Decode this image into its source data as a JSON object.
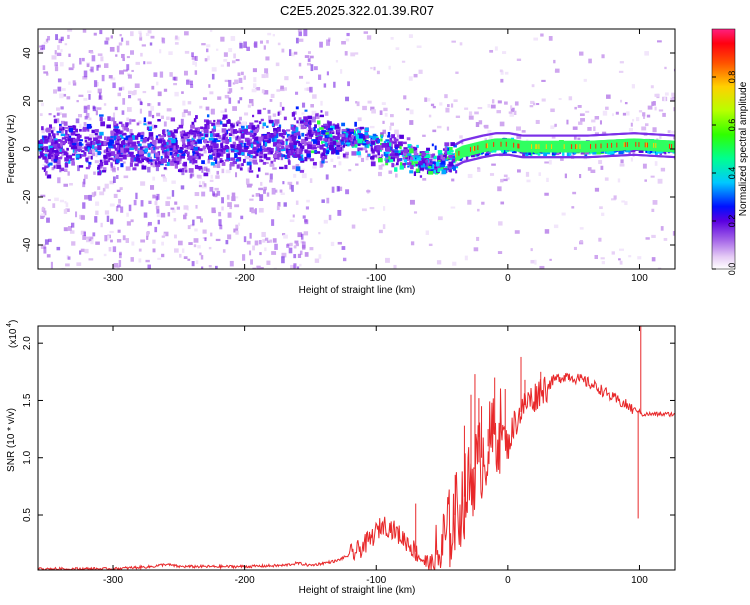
{
  "title": "C2E5.2025.322.01.39.R07",
  "chart_data": [
    {
      "type": "heatmap",
      "xlabel": "Height of straight line (km)",
      "ylabel": "Frequency (Hz)",
      "xlim": [
        -357,
        127
      ],
      "ylim": [
        -50,
        50
      ],
      "x_ticks": [
        -300,
        -200,
        -100,
        0,
        100
      ],
      "x_tick_labels": [
        "-300",
        "-200",
        "-100",
        "0",
        "100"
      ],
      "y_ticks": [
        -40,
        -20,
        0,
        20,
        40
      ],
      "y_tick_labels": [
        "-40",
        "-20",
        "0",
        "20",
        "40"
      ],
      "colorbar": {
        "label": "Normalized spectral amplitude",
        "range": [
          0,
          1
        ],
        "ticks": [
          0.0,
          0.2,
          0.4,
          0.6,
          0.8
        ],
        "tick_labels": [
          "0.0",
          "0.2",
          "0.4",
          "0.6",
          "0.8"
        ]
      },
      "center_frequency_trend": {
        "x": [
          -357,
          -300,
          -250,
          -200,
          -150,
          -120,
          -100,
          -80,
          -60,
          -45,
          -35,
          -20,
          -10,
          0,
          10,
          30,
          60,
          95,
          127
        ],
        "y": [
          2,
          2,
          2,
          3,
          5,
          5,
          2,
          -2,
          -5,
          -4,
          -1,
          1,
          2,
          2,
          1,
          1,
          1,
          2,
          1
        ]
      }
    },
    {
      "type": "line",
      "xlabel": "Height of straight line (km)",
      "ylabel": "SNR (10 * v/v)",
      "y_multiplier_label": "(x10",
      "y_multiplier_exp": "4",
      "xlim": [
        -357,
        127
      ],
      "ylim": [
        0.02,
        2.15
      ],
      "x_ticks": [
        -300,
        -200,
        -100,
        0,
        100
      ],
      "x_tick_labels": [
        "-300",
        "-200",
        "-100",
        "0",
        "100"
      ],
      "y_ticks": [
        0.5,
        1.0,
        1.5,
        2.0
      ],
      "y_tick_labels": [
        "0.5",
        "1.0",
        "1.5",
        "2.0"
      ],
      "series": [
        {
          "name": "SNR",
          "color": "#e8282a",
          "x": [
            -357,
            -300,
            -270,
            -260,
            -250,
            -200,
            -170,
            -160,
            -150,
            -130,
            -115,
            -105,
            -100,
            -95,
            -88,
            -80,
            -75,
            -68,
            -60,
            -55,
            -50,
            -45,
            -40,
            -35,
            -30,
            -25,
            -20,
            -15,
            -10,
            -5,
            0,
            5,
            10,
            15,
            20,
            25,
            30,
            35,
            40,
            45,
            50,
            60,
            70,
            80,
            90,
            95,
            98,
            100,
            102,
            105,
            110,
            127
          ],
          "y": [
            0.03,
            0.03,
            0.05,
            0.07,
            0.05,
            0.05,
            0.06,
            0.08,
            0.06,
            0.1,
            0.18,
            0.28,
            0.35,
            0.42,
            0.38,
            0.3,
            0.25,
            0.15,
            0.06,
            0.08,
            0.2,
            0.35,
            0.5,
            0.6,
            0.75,
            0.9,
            1.0,
            1.1,
            1.2,
            1.25,
            1.1,
            1.3,
            1.4,
            1.5,
            1.52,
            1.6,
            1.62,
            1.68,
            1.7,
            1.72,
            1.7,
            1.66,
            1.6,
            1.52,
            1.46,
            1.42,
            1.42,
            1.4,
            1.38,
            1.38,
            1.38,
            1.38
          ]
        }
      ],
      "spikes": [
        {
          "x": -70,
          "y": 0.6
        },
        {
          "x": -40,
          "y": 0.85
        },
        {
          "x": -33,
          "y": 1.28
        },
        {
          "x": -28,
          "y": 1.55
        },
        {
          "x": -25,
          "y": 1.73
        },
        {
          "x": -22,
          "y": 1.52
        },
        {
          "x": -20,
          "y": 1.45
        },
        {
          "x": -15,
          "y": 1.25
        },
        {
          "x": -10,
          "y": 1.7
        },
        {
          "x": -2,
          "y": 1.6
        },
        {
          "x": 10,
          "y": 1.88
        },
        {
          "x": 13,
          "y": 1.68
        },
        {
          "x": 25,
          "y": 1.75
        },
        {
          "x": 99,
          "y": 0.47
        },
        {
          "x": 101,
          "y": 2.15
        }
      ]
    }
  ]
}
